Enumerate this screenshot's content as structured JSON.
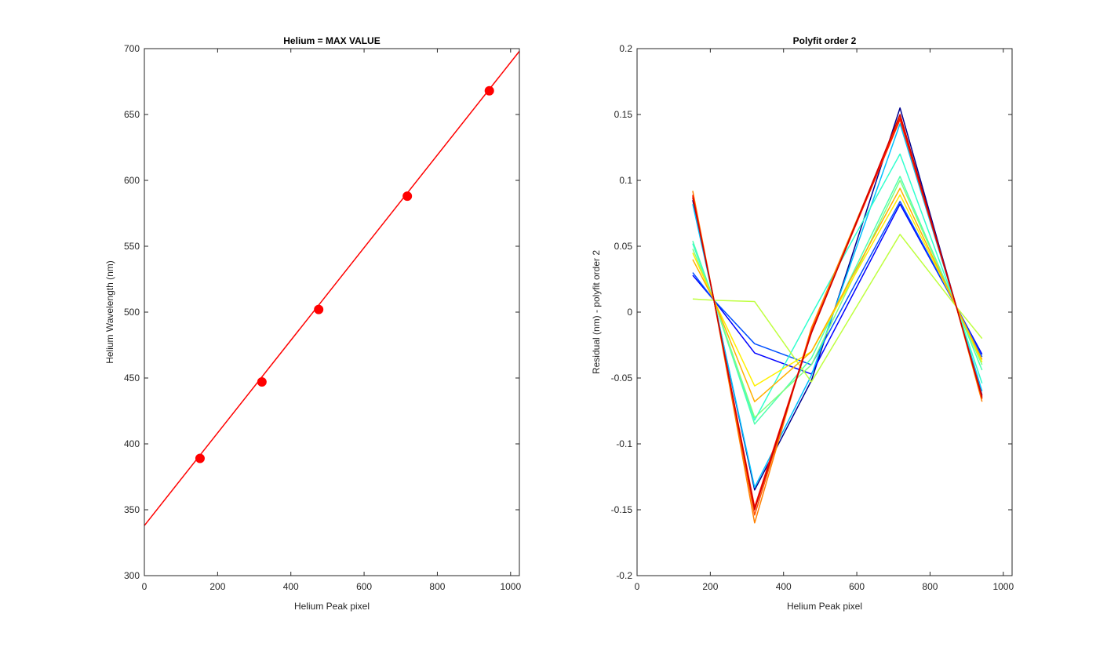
{
  "chart_data": [
    {
      "type": "line",
      "title": "Helium = MAX VALUE",
      "xlabel": "Helium Peak pixel",
      "ylabel": "Helium Wavelength (nm)",
      "xlim": [
        0,
        1024
      ],
      "ylim": [
        300,
        700
      ],
      "xticks": [
        0,
        200,
        400,
        600,
        800,
        1000
      ],
      "yticks": [
        300,
        350,
        400,
        450,
        500,
        550,
        600,
        650,
        700
      ],
      "grid": false,
      "fit_line": {
        "color": "#ff0000",
        "x": [
          0,
          1024
        ],
        "y": [
          338,
          698
        ]
      },
      "points": {
        "color": "#ff0000",
        "x": [
          152,
          321,
          476,
          718,
          942
        ],
        "y": [
          389,
          447,
          502,
          588,
          668
        ]
      }
    },
    {
      "type": "line",
      "title": "Polyfit order 2",
      "xlabel": "Helium Peak pixel",
      "ylabel": "Residual (nm) - polyfit order 2",
      "xlim": [
        0,
        1024
      ],
      "ylim": [
        -0.2,
        0.2
      ],
      "xticks": [
        0,
        200,
        400,
        600,
        800,
        1000
      ],
      "yticks": [
        -0.2,
        -0.15,
        -0.1,
        -0.05,
        0,
        0.05,
        0.1,
        0.15,
        0.2
      ],
      "grid": false,
      "series": [
        {
          "color": "#00008f",
          "x": [
            152,
            210,
            321,
            476,
            718,
            872,
            942
          ],
          "y": [
            0.085,
            0.009,
            -0.135,
            -0.052,
            0.155,
            0.004,
            -0.063
          ]
        },
        {
          "color": "#0000ff",
          "x": [
            152,
            210,
            321,
            476,
            718,
            872,
            942
          ],
          "y": [
            0.028,
            0.009,
            -0.031,
            -0.047,
            0.082,
            0.004,
            -0.032
          ]
        },
        {
          "color": "#0050ff",
          "x": [
            152,
            210,
            321,
            476,
            718,
            872,
            942
          ],
          "y": [
            0.03,
            0.009,
            -0.024,
            -0.04,
            0.084,
            0.004,
            -0.034
          ]
        },
        {
          "color": "#00c0ff",
          "x": [
            152,
            210,
            321,
            476,
            718,
            872,
            942
          ],
          "y": [
            0.082,
            0.009,
            -0.133,
            -0.048,
            0.143,
            0.004,
            -0.06
          ]
        },
        {
          "color": "#30ffcf",
          "x": [
            152,
            210,
            321,
            476,
            718,
            872,
            942
          ],
          "y": [
            0.052,
            0.009,
            -0.082,
            -0.002,
            0.12,
            0.004,
            -0.054
          ]
        },
        {
          "color": "#50ffaf",
          "x": [
            152,
            210,
            321,
            476,
            718,
            872,
            942
          ],
          "y": [
            0.054,
            0.009,
            -0.085,
            -0.035,
            0.103,
            0.004,
            -0.044
          ]
        },
        {
          "color": "#80ff80",
          "x": [
            152,
            210,
            321,
            476,
            718,
            872,
            942
          ],
          "y": [
            0.048,
            0.009,
            -0.08,
            -0.04,
            0.1,
            0.004,
            -0.04
          ]
        },
        {
          "color": "#bfff40",
          "x": [
            152,
            210,
            321,
            476,
            718,
            872,
            942
          ],
          "y": [
            0.01,
            0.009,
            0.008,
            -0.053,
            0.059,
            0.004,
            -0.02
          ]
        },
        {
          "color": "#ffef00",
          "x": [
            152,
            210,
            321,
            476,
            718,
            872,
            942
          ],
          "y": [
            0.045,
            0.009,
            -0.056,
            -0.03,
            0.089,
            0.004,
            -0.038
          ]
        },
        {
          "color": "#ffb000",
          "x": [
            152,
            210,
            321,
            476,
            718,
            872,
            942
          ],
          "y": [
            0.04,
            0.009,
            -0.068,
            -0.03,
            0.094,
            0.004,
            -0.036
          ]
        },
        {
          "color": "#ff8000",
          "x": [
            152,
            210,
            321,
            476,
            718,
            872,
            942
          ],
          "y": [
            0.092,
            0.009,
            -0.16,
            -0.012,
            0.148,
            0.004,
            -0.068
          ]
        },
        {
          "color": "#ff5000",
          "x": [
            152,
            210,
            321,
            476,
            718,
            872,
            942
          ],
          "y": [
            0.088,
            0.009,
            -0.154,
            -0.014,
            0.146,
            0.004,
            -0.066
          ]
        },
        {
          "color": "#ff1000",
          "x": [
            152,
            210,
            321,
            476,
            718,
            872,
            942
          ],
          "y": [
            0.089,
            0.009,
            -0.148,
            -0.015,
            0.147,
            0.004,
            -0.064
          ]
        },
        {
          "color": "#cf0000",
          "x": [
            152,
            210,
            321,
            476,
            718,
            872,
            942
          ],
          "y": [
            0.087,
            0.009,
            -0.15,
            -0.016,
            0.15,
            0.004,
            -0.065
          ]
        }
      ]
    }
  ]
}
